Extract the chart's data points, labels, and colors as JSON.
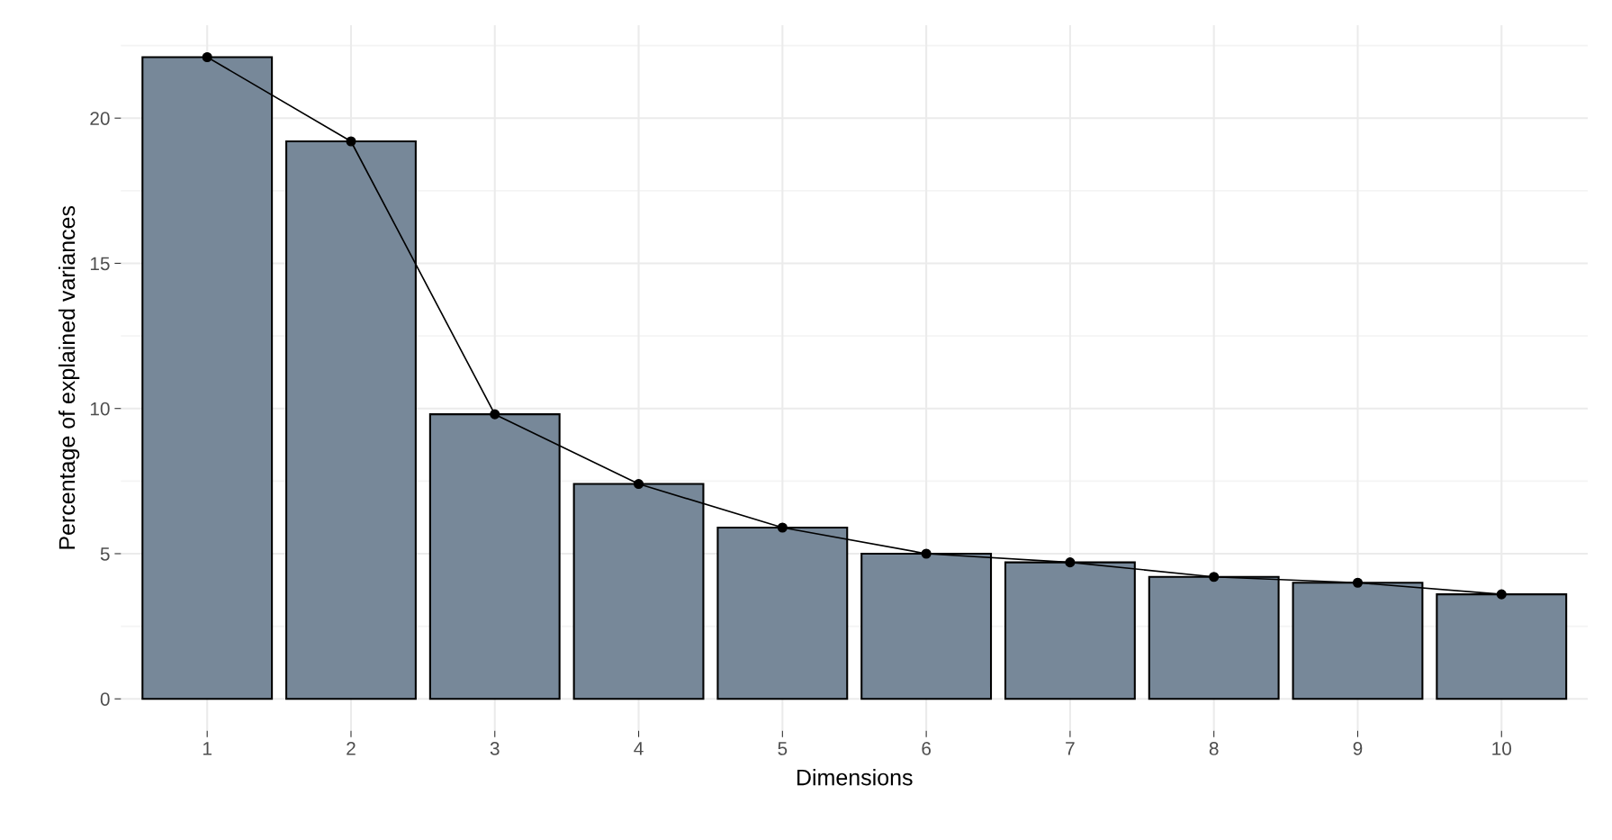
{
  "chart_data": {
    "type": "bar",
    "xlabel": "Dimensions",
    "ylabel": "Percentage of explained variances",
    "categories": [
      "1",
      "2",
      "3",
      "4",
      "5",
      "6",
      "7",
      "8",
      "9",
      "10"
    ],
    "series": [
      {
        "color": "#778899",
        "values": [
          22.1,
          19.2,
          9.8,
          7.4,
          5.9,
          5.0,
          4.7,
          4.2,
          4.0,
          3.6
        ]
      },
      {
        "type": "line",
        "color": "#000000",
        "marker": "circle",
        "values": [
          22.1,
          19.2,
          9.8,
          7.4,
          5.9,
          5.0,
          4.7,
          4.2,
          4.0,
          3.6
        ]
      }
    ],
    "ylim": [
      -1.1,
      23.2
    ],
    "yticks": [
      0,
      5,
      10,
      15,
      20
    ],
    "grid": true
  }
}
